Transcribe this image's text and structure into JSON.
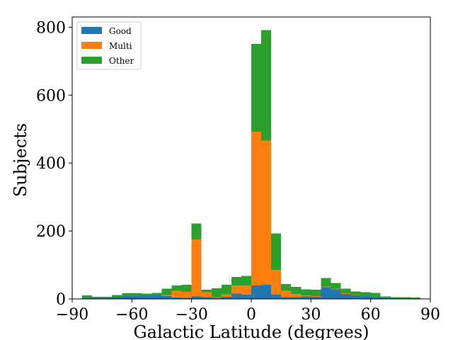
{
  "chart_data": {
    "type": "bar",
    "stacked": true,
    "xlabel": "Galactic Latitude (degrees)",
    "ylabel": "Subjects",
    "xlim": [
      -90,
      90
    ],
    "ylim": [
      0,
      830
    ],
    "xticks": [
      -90,
      -60,
      -30,
      0,
      30,
      60,
      90
    ],
    "yticks": [
      0,
      200,
      400,
      600,
      800
    ],
    "xtick_labels": [
      "−90",
      "−60",
      "−30",
      "0",
      "30",
      "60",
      "90"
    ],
    "ytick_labels": [
      "0",
      "200",
      "400",
      "600",
      "800"
    ],
    "legend_position": "upper-left",
    "bin_left_edges": [
      -85,
      -80,
      -75,
      -70,
      -65,
      -60,
      -55,
      -50,
      -45,
      -40,
      -35,
      -30,
      -25,
      -20,
      -15,
      -10,
      -5,
      0,
      5,
      10,
      15,
      20,
      25,
      30,
      35,
      40,
      45,
      50,
      55,
      60,
      65,
      70,
      75,
      80
    ],
    "bin_width": 5,
    "series": [
      {
        "name": "Good",
        "color": "#1f77b4",
        "values": [
          3,
          3,
          3,
          6,
          8,
          8,
          10,
          11,
          8,
          4,
          3,
          7,
          5,
          3,
          6,
          16,
          12,
          40,
          42,
          13,
          5,
          5,
          7,
          6,
          34,
          28,
          15,
          10,
          8,
          4,
          3,
          2,
          2,
          1
        ]
      },
      {
        "name": "Multi",
        "color": "#ff7f0e",
        "values": [
          0,
          0,
          0,
          0,
          0,
          0,
          0,
          0,
          3,
          20,
          18,
          168,
          15,
          2,
          8,
          24,
          28,
          452,
          424,
          72,
          19,
          10,
          3,
          2,
          3,
          2,
          2,
          1,
          0,
          0,
          0,
          0,
          0,
          0
        ]
      },
      {
        "name": "Other",
        "color": "#2ca02c",
        "values": [
          7,
          3,
          3,
          5,
          9,
          9,
          6,
          7,
          19,
          16,
          21,
          47,
          7,
          26,
          28,
          25,
          28,
          259,
          325,
          108,
          20,
          20,
          18,
          19,
          24,
          17,
          13,
          11,
          12,
          14,
          4,
          3,
          3,
          3
        ]
      }
    ]
  }
}
